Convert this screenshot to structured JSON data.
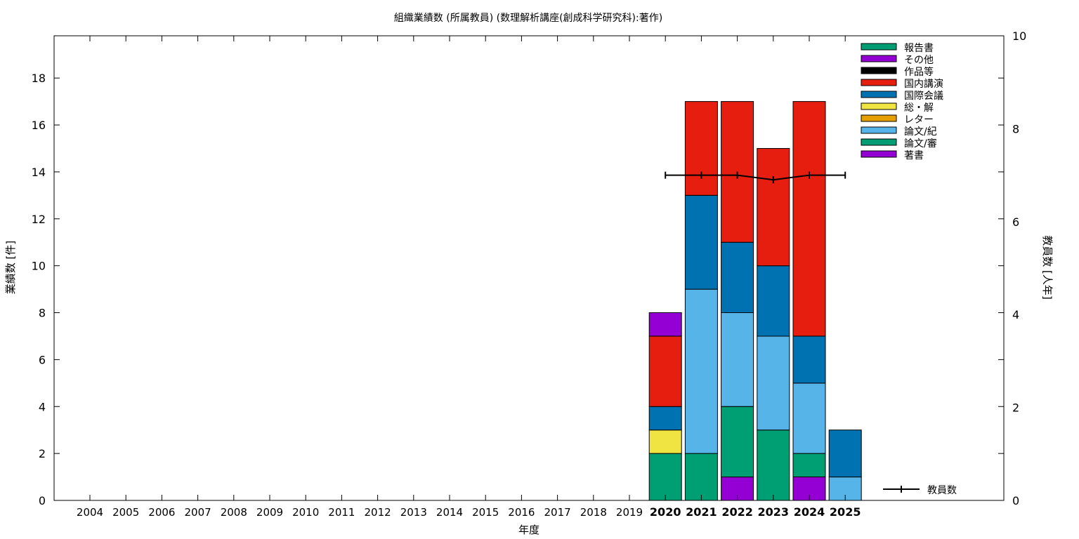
{
  "chart_data": {
    "type": "bar",
    "stacked": true,
    "title": "組織業績数 (所属教員) (数理解析講座(創成科学研究科):著作)",
    "xlabel": "年度",
    "ylabel": "業績数 [件]",
    "y2label": "教員数 [人年]",
    "ylim": [
      0,
      19.8
    ],
    "y2lim": [
      0,
      10
    ],
    "yticks": [
      "0",
      "2",
      "4",
      "6",
      "8",
      "10",
      "12",
      "14",
      "16",
      "18"
    ],
    "y2ticks": [
      "0",
      "2",
      "4",
      "6",
      "8",
      "10"
    ],
    "categories": [
      "2004",
      "2005",
      "2006",
      "2007",
      "2008",
      "2009",
      "2010",
      "2011",
      "2012",
      "2013",
      "2014",
      "2015",
      "2016",
      "2017",
      "2018",
      "2019",
      "2020",
      "2021",
      "2022",
      "2023",
      "2024",
      "2025"
    ],
    "bold_categories": [
      "2020",
      "2021",
      "2022",
      "2023",
      "2024",
      "2025"
    ],
    "series": [
      {
        "name": "著書",
        "color": "#9400d3",
        "values": [
          0,
          0,
          0,
          0,
          0,
          0,
          0,
          0,
          0,
          0,
          0,
          0,
          0,
          0,
          0,
          0,
          0,
          0,
          1,
          0,
          1,
          0
        ]
      },
      {
        "name": "論文/審",
        "color": "#009e73",
        "values": [
          0,
          0,
          0,
          0,
          0,
          0,
          0,
          0,
          0,
          0,
          0,
          0,
          0,
          0,
          0,
          0,
          2,
          2,
          3,
          3,
          1,
          0
        ]
      },
      {
        "name": "論文/紀",
        "color": "#56b4e9",
        "values": [
          0,
          0,
          0,
          0,
          0,
          0,
          0,
          0,
          0,
          0,
          0,
          0,
          0,
          0,
          0,
          0,
          0,
          7,
          4,
          4,
          3,
          1
        ]
      },
      {
        "name": "レター",
        "color": "#e69f00",
        "values": [
          0,
          0,
          0,
          0,
          0,
          0,
          0,
          0,
          0,
          0,
          0,
          0,
          0,
          0,
          0,
          0,
          0,
          0,
          0,
          0,
          0,
          0
        ]
      },
      {
        "name": "総・解",
        "color": "#f0e442",
        "values": [
          0,
          0,
          0,
          0,
          0,
          0,
          0,
          0,
          0,
          0,
          0,
          0,
          0,
          0,
          0,
          0,
          1,
          0,
          0,
          0,
          0,
          0
        ]
      },
      {
        "name": "国際会議",
        "color": "#0072b2",
        "values": [
          0,
          0,
          0,
          0,
          0,
          0,
          0,
          0,
          0,
          0,
          0,
          0,
          0,
          0,
          0,
          0,
          1,
          4,
          3,
          3,
          2,
          2
        ]
      },
      {
        "name": "国内講演",
        "color": "#e51e10",
        "values": [
          0,
          0,
          0,
          0,
          0,
          0,
          0,
          0,
          0,
          0,
          0,
          0,
          0,
          0,
          0,
          0,
          3,
          4,
          6,
          5,
          10,
          0
        ]
      },
      {
        "name": "作品等",
        "color": "#000000",
        "values": [
          0,
          0,
          0,
          0,
          0,
          0,
          0,
          0,
          0,
          0,
          0,
          0,
          0,
          0,
          0,
          0,
          0,
          0,
          0,
          0,
          0,
          0
        ]
      },
      {
        "name": "その他",
        "color": "#9400d3",
        "values": [
          0,
          0,
          0,
          0,
          0,
          0,
          0,
          0,
          0,
          0,
          0,
          0,
          0,
          0,
          0,
          0,
          1,
          0,
          0,
          0,
          0,
          0
        ]
      },
      {
        "name": "報告書",
        "color": "#009e73",
        "values": [
          0,
          0,
          0,
          0,
          0,
          0,
          0,
          0,
          0,
          0,
          0,
          0,
          0,
          0,
          0,
          0,
          0,
          0,
          0,
          0,
          0,
          0
        ]
      }
    ],
    "legend_order": [
      "報告書",
      "その他",
      "作品等",
      "国内講演",
      "国際会議",
      "総・解",
      "レター",
      "論文/紀",
      "論文/審",
      "著書"
    ],
    "line": {
      "name": "教員数",
      "axis": "y2",
      "color": "#000000",
      "x": [
        "2020",
        "2021",
        "2022",
        "2023",
        "2024",
        "2025"
      ],
      "values": [
        7,
        7,
        7,
        6.9,
        7,
        7
      ]
    },
    "legend_position": "top-right",
    "grid": false
  }
}
